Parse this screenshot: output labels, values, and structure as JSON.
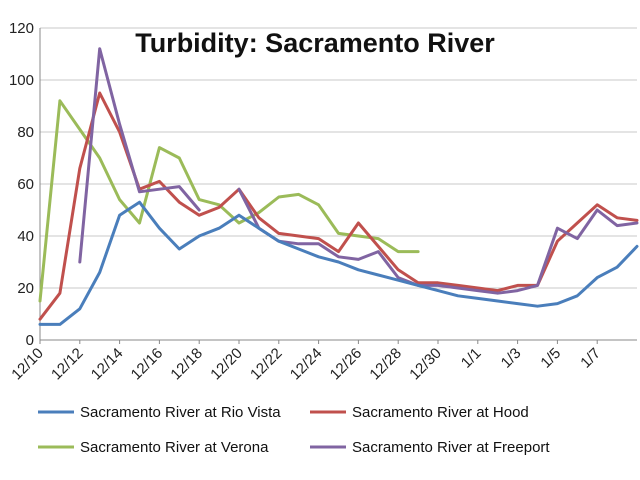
{
  "chart_data": {
    "type": "line",
    "title": "Turbidity: Sacramento River",
    "xlabel": "",
    "ylabel": "",
    "ylim": [
      0,
      120
    ],
    "yticks": [
      "0",
      "20",
      "40",
      "60",
      "80",
      "100",
      "120"
    ],
    "xticks": [
      "12/10",
      "12/12",
      "12/14",
      "12/16",
      "12/18",
      "12/20",
      "12/22",
      "12/24",
      "12/26",
      "12/28",
      "12/30",
      "1/1",
      "1/3",
      "1/5",
      "1/7"
    ],
    "grid": true,
    "legend_position": "bottom",
    "series": [
      {
        "name": "Sacramento River at Rio Vista",
        "color": "#4a7ebb",
        "x": [
          0,
          1,
          2,
          3,
          4,
          5,
          6,
          7,
          8,
          9,
          10,
          11,
          12,
          13,
          14,
          15,
          16,
          17,
          18,
          19,
          20,
          21,
          22,
          23,
          24,
          25,
          26,
          27,
          28,
          29,
          30
        ],
        "values": [
          6,
          6,
          12,
          26,
          48,
          53,
          43,
          35,
          40,
          43,
          48,
          43,
          38,
          35,
          32,
          30,
          27,
          25,
          23,
          21,
          19,
          17,
          16,
          15,
          14,
          13,
          14,
          17,
          24,
          28,
          36
        ]
      },
      {
        "name": "Sacramento River at Hood",
        "color": "#c0504d",
        "x": [
          0,
          1,
          2,
          3,
          4,
          5,
          6,
          7,
          8,
          9,
          10,
          11,
          12,
          13,
          14,
          15,
          16,
          17,
          18,
          19,
          20,
          21,
          22,
          23,
          24,
          25,
          26,
          27,
          28,
          29,
          30
        ],
        "values": [
          8,
          18,
          66,
          95,
          80,
          58,
          61,
          53,
          48,
          51,
          58,
          47,
          41,
          40,
          39,
          34,
          45,
          36,
          27,
          22,
          22,
          21,
          20,
          19,
          21,
          21,
          38,
          45,
          52,
          47,
          46
        ]
      },
      {
        "name": "Sacramento River at Verona",
        "color": "#9bbb59",
        "x": [
          0,
          1,
          2,
          3,
          4,
          5,
          6,
          7,
          8,
          9,
          10,
          11,
          12,
          13,
          14,
          15,
          16,
          17,
          18,
          19
        ],
        "values": [
          15,
          92,
          81,
          70,
          54,
          45,
          74,
          70,
          54,
          52,
          45,
          49,
          55,
          56,
          52,
          41,
          40,
          39,
          34,
          34
        ]
      },
      {
        "name": "Sacramento River at Freeport",
        "color": "#8064a2",
        "x": [
          2,
          3,
          4,
          5,
          6,
          7,
          8,
          9,
          10,
          11,
          12,
          13,
          14,
          15,
          16,
          17,
          18,
          19,
          20,
          21,
          22,
          23,
          24,
          25,
          26,
          27,
          28,
          29,
          30
        ],
        "values": [
          30,
          112,
          83,
          57,
          58,
          59,
          50,
          null,
          58,
          43,
          38,
          37,
          37,
          32,
          31,
          34,
          24,
          21,
          21,
          20,
          19,
          18,
          19,
          21,
          43,
          39,
          50,
          44,
          45
        ]
      }
    ]
  }
}
